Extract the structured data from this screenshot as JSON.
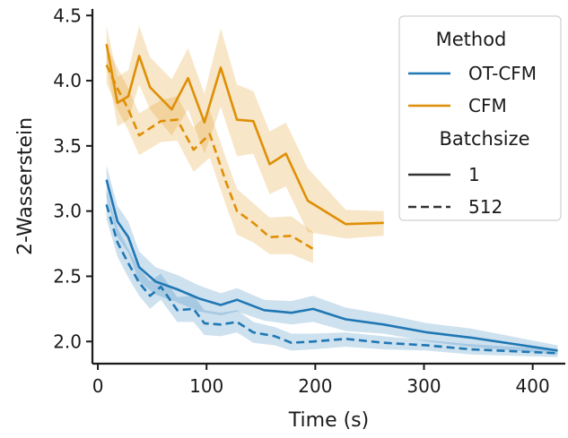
{
  "chart_data": {
    "type": "line",
    "xlabel": "Time (s)",
    "ylabel": "2-Wasserstein",
    "xlim": [
      -5,
      430
    ],
    "ylim": [
      1.83,
      4.55
    ],
    "xticks": [
      0,
      100,
      200,
      300,
      400
    ],
    "yticks": [
      2.0,
      2.5,
      3.0,
      3.5,
      4.0,
      4.5
    ],
    "xtick_labels": [
      "0",
      "100",
      "200",
      "300",
      "400"
    ],
    "ytick_labels": [
      "2.0",
      "2.5",
      "3.0",
      "3.5",
      "4.0",
      "4.5"
    ],
    "grid": false,
    "legend": {
      "position": "top-right",
      "hue_title": "Method",
      "style_title": "Batchsize",
      "hue_entries": [
        {
          "label": "OT-CFM",
          "color": "#1f77b4"
        },
        {
          "label": "CFM",
          "color": "#de8f05"
        }
      ],
      "style_entries": [
        {
          "label": "1",
          "dash": "solid"
        },
        {
          "label": "512",
          "dash": "dashed"
        }
      ]
    },
    "series": [
      {
        "method": "CFM",
        "batchsize": "1",
        "color": "#de8f05",
        "dash": "solid",
        "x": [
          8,
          18,
          28,
          38,
          48,
          68,
          83,
          98,
          113,
          128,
          143,
          158,
          173,
          193,
          228,
          263
        ],
        "y": [
          4.28,
          3.83,
          3.88,
          4.19,
          3.95,
          3.78,
          4.02,
          3.68,
          4.1,
          3.7,
          3.69,
          3.36,
          3.44,
          3.08,
          2.9,
          2.91
        ],
        "upper": [
          4.42,
          4.03,
          4.08,
          4.42,
          4.18,
          4.01,
          4.25,
          3.9,
          4.4,
          3.97,
          3.92,
          3.61,
          3.68,
          3.33,
          3.01,
          3.0
        ],
        "lower": [
          4.13,
          3.65,
          3.7,
          3.97,
          3.78,
          3.58,
          3.78,
          3.44,
          3.8,
          3.42,
          3.44,
          3.13,
          3.19,
          2.84,
          2.79,
          2.81
        ]
      },
      {
        "method": "CFM",
        "batchsize": "512",
        "color": "#de8f05",
        "dash": "dashed",
        "x": [
          8,
          18,
          28,
          38,
          58,
          73,
          88,
          103,
          118,
          128,
          143,
          158,
          178,
          198
        ],
        "y": [
          4.12,
          3.94,
          3.78,
          3.58,
          3.69,
          3.7,
          3.47,
          3.59,
          3.22,
          3.0,
          2.91,
          2.8,
          2.81,
          2.71
        ],
        "upper": [
          4.26,
          4.1,
          3.94,
          3.75,
          3.85,
          3.88,
          3.64,
          3.77,
          3.4,
          3.17,
          3.06,
          2.95,
          2.96,
          2.84
        ],
        "lower": [
          3.98,
          3.78,
          3.62,
          3.43,
          3.53,
          3.54,
          3.3,
          3.41,
          3.04,
          2.82,
          2.76,
          2.67,
          2.67,
          2.6
        ]
      },
      {
        "method": "OT-CFM",
        "batchsize": "1",
        "color": "#1f77b4",
        "dash": "solid",
        "x": [
          8,
          18,
          28,
          38,
          53,
          73,
          93,
          113,
          128,
          153,
          178,
          198,
          228,
          263,
          303,
          343,
          423
        ],
        "y": [
          3.24,
          2.92,
          2.8,
          2.57,
          2.46,
          2.4,
          2.33,
          2.28,
          2.32,
          2.24,
          2.22,
          2.25,
          2.17,
          2.13,
          2.07,
          2.03,
          1.93
        ],
        "upper": [
          3.35,
          3.04,
          2.92,
          2.69,
          2.57,
          2.51,
          2.43,
          2.37,
          2.41,
          2.32,
          2.31,
          2.35,
          2.26,
          2.21,
          2.14,
          2.1,
          1.97
        ],
        "lower": [
          3.12,
          2.8,
          2.68,
          2.46,
          2.36,
          2.3,
          2.23,
          2.2,
          2.23,
          2.16,
          2.13,
          2.15,
          2.08,
          2.06,
          2.0,
          1.96,
          1.9
        ]
      },
      {
        "method": "OT-CFM",
        "batchsize": "512",
        "color": "#1f77b4",
        "dash": "dashed",
        "x": [
          8,
          18,
          28,
          38,
          48,
          58,
          73,
          88,
          98,
          113,
          128,
          143,
          163,
          178,
          198,
          228,
          263,
          303,
          343,
          423
        ],
        "y": [
          3.05,
          2.76,
          2.6,
          2.45,
          2.35,
          2.42,
          2.24,
          2.25,
          2.14,
          2.13,
          2.15,
          2.07,
          2.04,
          1.99,
          2.0,
          2.02,
          1.99,
          1.97,
          1.94,
          1.91
        ],
        "upper": [
          3.16,
          2.87,
          2.71,
          2.56,
          2.46,
          2.52,
          2.34,
          2.35,
          2.24,
          2.22,
          2.24,
          2.15,
          2.11,
          2.06,
          2.06,
          2.07,
          2.04,
          2.01,
          1.98,
          1.94
        ],
        "lower": [
          2.94,
          2.65,
          2.49,
          2.35,
          2.25,
          2.32,
          2.15,
          2.15,
          2.05,
          2.04,
          2.07,
          1.99,
          1.97,
          1.93,
          1.94,
          1.96,
          1.94,
          1.93,
          1.9,
          1.88
        ]
      }
    ]
  }
}
